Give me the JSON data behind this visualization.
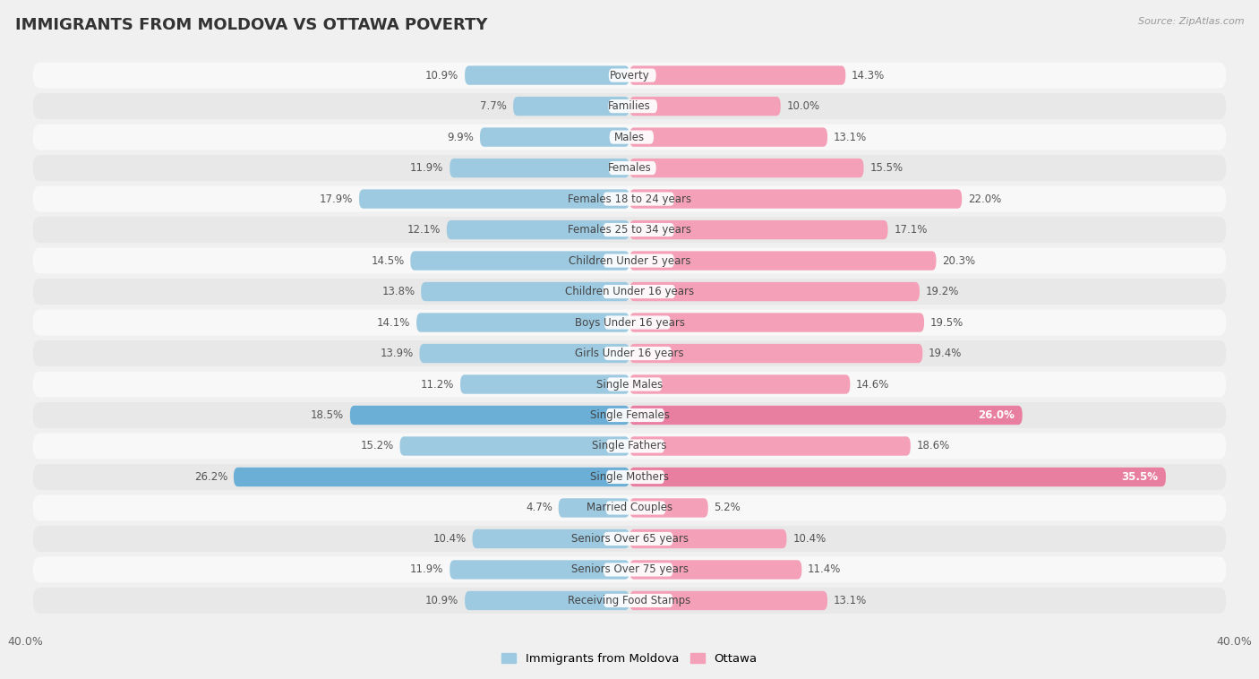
{
  "title": "IMMIGRANTS FROM MOLDOVA VS OTTAWA POVERTY",
  "source": "Source: ZipAtlas.com",
  "categories": [
    "Poverty",
    "Families",
    "Males",
    "Females",
    "Females 18 to 24 years",
    "Females 25 to 34 years",
    "Children Under 5 years",
    "Children Under 16 years",
    "Boys Under 16 years",
    "Girls Under 16 years",
    "Single Males",
    "Single Females",
    "Single Fathers",
    "Single Mothers",
    "Married Couples",
    "Seniors Over 65 years",
    "Seniors Over 75 years",
    "Receiving Food Stamps"
  ],
  "left_values": [
    10.9,
    7.7,
    9.9,
    11.9,
    17.9,
    12.1,
    14.5,
    13.8,
    14.1,
    13.9,
    11.2,
    18.5,
    15.2,
    26.2,
    4.7,
    10.4,
    11.9,
    10.9
  ],
  "right_values": [
    14.3,
    10.0,
    13.1,
    15.5,
    22.0,
    17.1,
    20.3,
    19.2,
    19.5,
    19.4,
    14.6,
    26.0,
    18.6,
    35.5,
    5.2,
    10.4,
    11.4,
    13.1
  ],
  "left_color": "#9ecae1",
  "right_color": "#f4a0b8",
  "left_highlight_color": "#6baed6",
  "right_highlight_color": "#e87fa0",
  "highlight_rows": [
    11,
    13
  ],
  "axis_limit": 40.0,
  "left_label": "Immigrants from Moldova",
  "right_label": "Ottawa",
  "bg_color": "#f0f0f0",
  "row_bg_even": "#f8f8f8",
  "row_bg_odd": "#e8e8e8",
  "title_fontsize": 13,
  "cat_fontsize": 8.5,
  "value_fontsize": 8.5
}
